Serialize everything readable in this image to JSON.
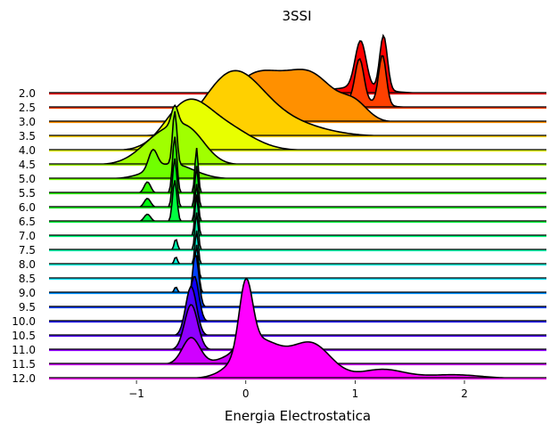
{
  "chart_data": {
    "type": "ridgeline",
    "title": "3SSI",
    "xlabel": "Energia Electrostatica",
    "xlim": [
      -1.8,
      2.75
    ],
    "xticks": [
      -1,
      0,
      1,
      2
    ],
    "xtick_labels": [
      "−1",
      "0",
      "1",
      "2"
    ],
    "grid": false,
    "legend": "none",
    "colormap": "gist_rainbow",
    "series": [
      {
        "label": "2.0",
        "color": "#ff0000",
        "peaks": [
          [
            1.05,
            0.05,
            0.62
          ],
          [
            1.26,
            0.035,
            0.72
          ],
          [
            1.0,
            0.25,
            0.08
          ]
        ]
      },
      {
        "label": "2.5",
        "color": "#ff4000",
        "peaks": [
          [
            1.04,
            0.04,
            0.55
          ],
          [
            1.25,
            0.035,
            0.65
          ],
          [
            1.0,
            0.2,
            0.1
          ]
        ]
      },
      {
        "label": "3.0",
        "color": "#ff9000",
        "peaks": [
          [
            0.1,
            0.25,
            0.62
          ],
          [
            0.6,
            0.22,
            0.58
          ],
          [
            1.0,
            0.12,
            0.2
          ]
        ]
      },
      {
        "label": "3.5",
        "color": "#ffd000",
        "peaks": [
          [
            -0.15,
            0.25,
            0.6
          ],
          [
            0.05,
            0.3,
            0.3
          ],
          [
            0.5,
            0.3,
            0.1
          ]
        ]
      },
      {
        "label": "4.0",
        "color": "#e8ff00",
        "peaks": [
          [
            -0.55,
            0.2,
            0.55
          ],
          [
            -0.2,
            0.25,
            0.3
          ]
        ]
      },
      {
        "label": "4.5",
        "color": "#a0ff00",
        "peaks": [
          [
            -0.75,
            0.2,
            0.4
          ],
          [
            -0.5,
            0.15,
            0.3
          ],
          [
            -0.65,
            0.03,
            0.25
          ]
        ]
      },
      {
        "label": "5.0",
        "color": "#70ff00",
        "peaks": [
          [
            -0.65,
            0.02,
            0.7
          ],
          [
            -0.85,
            0.04,
            0.25
          ],
          [
            -0.68,
            0.2,
            0.2
          ]
        ]
      },
      {
        "label": "5.5",
        "color": "#30ff00",
        "peaks": [
          [
            -0.65,
            0.02,
            0.75
          ],
          [
            -0.45,
            0.015,
            0.6
          ],
          [
            -0.9,
            0.03,
            0.15
          ]
        ]
      },
      {
        "label": "6.0",
        "color": "#00ff10",
        "peaks": [
          [
            -0.65,
            0.02,
            0.65
          ],
          [
            -0.45,
            0.015,
            0.55
          ],
          [
            -0.9,
            0.03,
            0.12
          ]
        ]
      },
      {
        "label": "6.5",
        "color": "#00ff40",
        "peaks": [
          [
            -0.65,
            0.02,
            0.55
          ],
          [
            -0.45,
            0.015,
            0.5
          ],
          [
            -0.9,
            0.03,
            0.1
          ]
        ]
      },
      {
        "label": "7.0",
        "color": "#00ff80",
        "peaks": [
          [
            -0.45,
            0.015,
            0.55
          ]
        ]
      },
      {
        "label": "7.5",
        "color": "#00ffb0",
        "peaks": [
          [
            -0.45,
            0.015,
            0.5
          ],
          [
            -0.64,
            0.015,
            0.15
          ]
        ]
      },
      {
        "label": "8.0",
        "color": "#00ffe0",
        "peaks": [
          [
            -0.45,
            0.015,
            0.45
          ],
          [
            -0.64,
            0.015,
            0.1
          ]
        ]
      },
      {
        "label": "8.5",
        "color": "#00e0ff",
        "peaks": [
          [
            -0.45,
            0.015,
            0.45
          ]
        ]
      },
      {
        "label": "9.0",
        "color": "#0090ff",
        "peaks": [
          [
            -0.45,
            0.02,
            0.5
          ],
          [
            -0.64,
            0.015,
            0.08
          ]
        ]
      },
      {
        "label": "9.5",
        "color": "#0040ff",
        "peaks": [
          [
            -0.46,
            0.03,
            0.7
          ]
        ]
      },
      {
        "label": "10.0",
        "color": "#1000ff",
        "peaks": [
          [
            -0.47,
            0.04,
            0.6
          ]
        ]
      },
      {
        "label": "10.5",
        "color": "#5000ff",
        "peaks": [
          [
            -0.5,
            0.05,
            0.65
          ]
        ]
      },
      {
        "label": "11.0",
        "color": "#9000ff",
        "peaks": [
          [
            -0.5,
            0.06,
            0.6
          ],
          [
            0.0,
            0.04,
            0.45
          ]
        ]
      },
      {
        "label": "11.5",
        "color": "#d000ff",
        "peaks": [
          [
            -0.5,
            0.08,
            0.35
          ],
          [
            0.0,
            0.05,
            0.6
          ],
          [
            0.1,
            0.2,
            0.3
          ]
        ]
      },
      {
        "label": "12.0",
        "color": "#ff00ff",
        "peaks": [
          [
            0.0,
            0.06,
            0.9
          ],
          [
            0.12,
            0.2,
            0.5
          ],
          [
            0.6,
            0.18,
            0.45
          ],
          [
            1.25,
            0.2,
            0.12
          ],
          [
            1.9,
            0.25,
            0.05
          ]
        ]
      }
    ]
  }
}
